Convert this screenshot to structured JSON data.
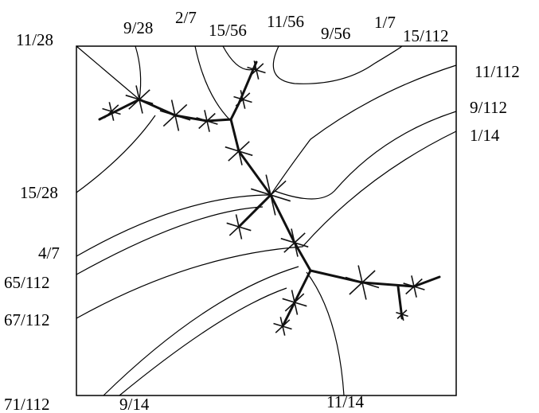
{
  "labels": [
    "11/28",
    "9/28",
    "2/7",
    "15/56",
    "11/56",
    "9/56",
    "1/7",
    "15/112",
    "11/112",
    "9/112",
    "1/14",
    "15/28",
    "4/7",
    "65/112",
    "67/112",
    "71/112",
    "9/14",
    "11/14"
  ]
}
